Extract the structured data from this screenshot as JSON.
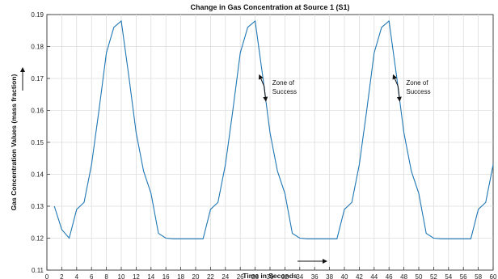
{
  "chart_data": {
    "type": "line",
    "title": "Change in Gas Concentration at Source 1 (S1)",
    "xlabel": "Time in Seconds",
    "ylabel": "Gas Concentration Values (mass fraction)",
    "xlim": [
      0,
      60
    ],
    "ylim": [
      0.11,
      0.19
    ],
    "xticks": [
      0,
      2,
      4,
      6,
      8,
      10,
      12,
      14,
      16,
      18,
      20,
      22,
      24,
      26,
      28,
      30,
      32,
      34,
      36,
      38,
      40,
      42,
      44,
      46,
      48,
      50,
      52,
      54,
      56,
      58,
      60
    ],
    "yticks": [
      0.11,
      0.12,
      0.13,
      0.14,
      0.15,
      0.16,
      0.17,
      0.18,
      0.19
    ],
    "grid": true,
    "series": [
      {
        "color": "#1f77b4",
        "x": [
          1,
          2,
          3,
          4,
          5,
          6,
          7,
          8,
          9,
          10,
          11,
          12,
          13,
          14,
          15,
          16,
          17,
          18,
          19,
          20,
          21,
          22,
          23,
          24,
          25,
          26,
          27,
          28,
          29,
          30,
          31,
          32,
          33,
          34,
          35,
          36,
          37,
          38,
          39,
          40,
          41,
          42,
          43,
          44,
          45,
          46,
          47,
          48,
          49,
          50,
          51,
          52,
          53,
          54,
          55,
          56,
          57,
          58,
          59,
          60
        ],
        "y": [
          0.13,
          0.1227,
          0.12,
          0.129,
          0.1312,
          0.143,
          0.16,
          0.178,
          0.186,
          0.188,
          0.171,
          0.153,
          0.141,
          0.134,
          0.1215,
          0.12,
          0.1198,
          0.1198,
          0.1198,
          0.1198,
          0.1198,
          0.129,
          0.1312,
          0.143,
          0.16,
          0.178,
          0.186,
          0.188,
          0.171,
          0.153,
          0.141,
          0.134,
          0.1215,
          0.12,
          0.1198,
          0.1198,
          0.1198,
          0.1198,
          0.1198,
          0.129,
          0.1312,
          0.143,
          0.16,
          0.178,
          0.186,
          0.188,
          0.171,
          0.153,
          0.141,
          0.134,
          0.1215,
          0.12,
          0.1198,
          0.1198,
          0.1198,
          0.1198,
          0.1198,
          0.129,
          0.1312,
          0.143
        ]
      }
    ],
    "annotations": [
      {
        "text": "Zone of Success",
        "x": 29,
        "y": 0.166
      },
      {
        "text": "Zone of Success",
        "x": 47,
        "y": 0.166
      }
    ]
  }
}
